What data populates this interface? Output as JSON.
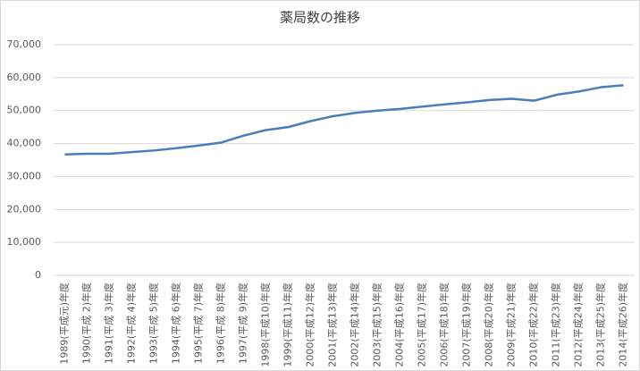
{
  "chart_data": {
    "type": "line",
    "title": "薬局数の推移",
    "categories": [
      "1989(平成元)年度",
      "1990(平成 2)年度",
      "1991(平成 3)年度",
      "1992(平成 4)年度",
      "1993(平成 5)年度",
      "1994(平成 6)年度",
      "1995(平成 7)年度",
      "1996(平成 8)年度",
      "1997(平成 9)年度",
      "1998(平成10)年度",
      "1999(平成11)年度",
      "2000(平成12)年度",
      "2001(平成13)年度",
      "2002(平成14)年度",
      "2003(平成15)年度",
      "2004(平成16)年度",
      "2005(平成17)年度",
      "2006(平成18)年度",
      "2007(平成19)年度",
      "2008(平成20)年度",
      "2009(平成21)年度",
      "2010(平成22)年度",
      "2011(平成23)年度",
      "2012(平成24)年度",
      "2013(平成25)年度",
      "2014(平成26)年度"
    ],
    "values": [
      36700,
      36900,
      36900,
      37400,
      37900,
      38600,
      39400,
      40300,
      42400,
      44100,
      45000,
      46800,
      48300,
      49300,
      50000,
      50500,
      51200,
      51900,
      52500,
      53200,
      53600,
      53000,
      54800,
      55800,
      57100,
      57700
    ],
    "color": "#4a7ebb",
    "ylim": [
      0,
      70000
    ],
    "yticks": [
      0,
      {
        "value": 10000,
        "label": "10,000"
      },
      {
        "value": 20000,
        "label": "20,000"
      },
      {
        "value": 30000,
        "label": "30,000"
      },
      {
        "value": 40000,
        "label": "40,000"
      },
      {
        "value": 50000,
        "label": "50,000"
      },
      {
        "value": 60000,
        "label": "60,000"
      },
      {
        "value": 70000,
        "label": "70,000"
      }
    ],
    "grid": true
  }
}
